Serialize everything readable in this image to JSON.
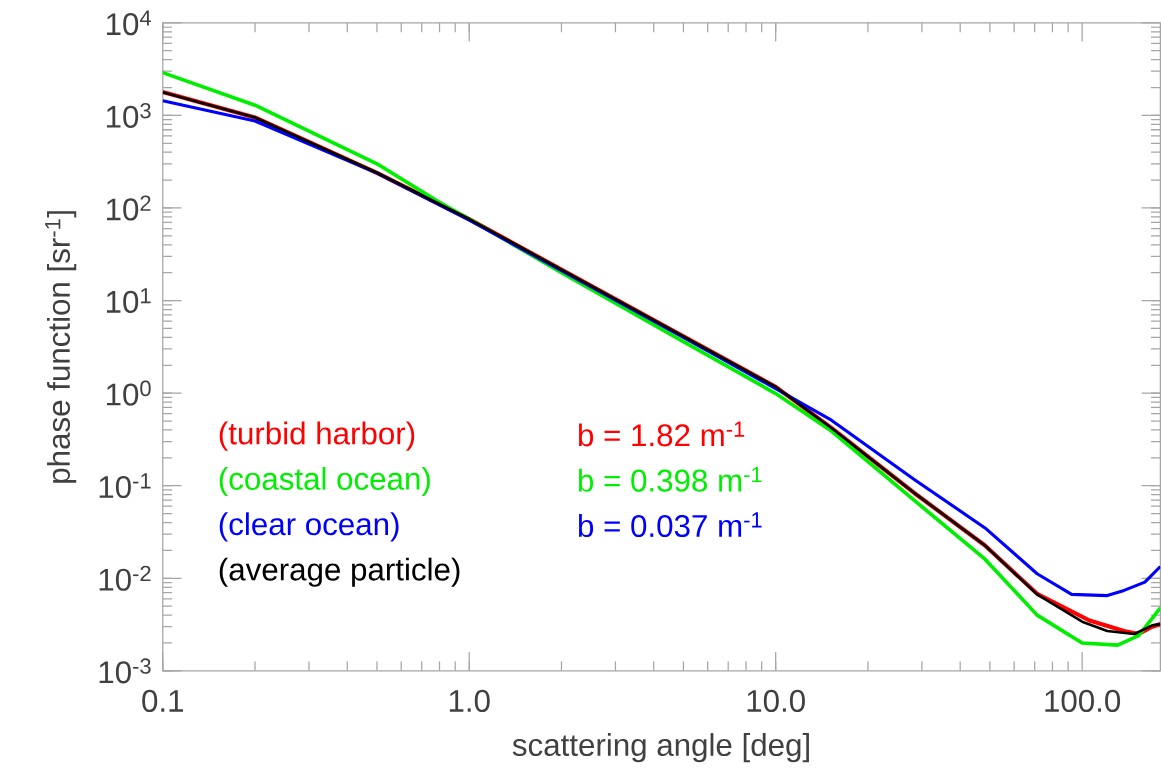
{
  "chart_data": {
    "type": "line",
    "xlabel": "scattering angle [deg]",
    "ylabel": "phase function [sr$^{-1}$]",
    "log": "xy",
    "xlim": [
      0.1,
      180
    ],
    "ylim": [
      0.001,
      10000
    ],
    "xticks": [
      0.1,
      {
        "value": 1,
        "label": "1.0"
      },
      {
        "value": 10,
        "label": "10.0"
      },
      {
        "value": 100,
        "label": "100.0"
      }
    ],
    "yticks": [
      {
        "value": 0.001,
        "label": "10$^{-3}$"
      },
      {
        "value": 0.01,
        "label": "10$^{-2}$"
      },
      {
        "value": 0.1,
        "label": "10$^{-1}$"
      },
      {
        "value": 1,
        "label": "10$^{0}$"
      },
      {
        "value": 10,
        "label": "10$^{1}$"
      },
      {
        "value": 100,
        "label": "10$^{2}$"
      },
      {
        "value": 1000,
        "label": "10$^{3}$"
      },
      {
        "value": 10000,
        "label": "10$^{4}$"
      }
    ],
    "grid": false,
    "legend": "bottom left",
    "marker": "none",
    "line_style": "solid",
    "series": [
      {
        "name": "(turbid harbor)",
        "color": "#ff0000",
        "x": [
          0.1,
          0.2,
          0.5,
          1,
          2,
          5,
          10,
          15.2,
          28.4,
          48.2,
          71.3,
          105.7,
          137,
          152.8,
          169.3,
          180
        ],
        "values": [
          1790,
          950,
          240,
          76,
          21.6,
          4.1,
          1.17,
          0.42,
          0.083,
          0.0226,
          0.0068,
          0.0035,
          0.0027,
          0.0025,
          0.003,
          0.0032
        ]
      },
      {
        "name": "(coastal ocean)",
        "color": "#00ee00",
        "x": [
          0.1,
          0.2,
          0.5,
          0.79,
          1,
          2,
          5,
          10,
          15.2,
          28.4,
          48.2,
          71.3,
          100,
          130.6,
          152.8,
          169.3,
          180
        ],
        "values": [
          2900,
          1290,
          300,
          118,
          76,
          20,
          3.6,
          0.99,
          0.39,
          0.069,
          0.0161,
          0.004,
          0.002,
          0.0019,
          0.0024,
          0.0037,
          0.0048
        ]
      },
      {
        "name": "(clear ocean)",
        "color": "#0000ff",
        "x": [
          0.1,
          0.2,
          0.5,
          1,
          2,
          5,
          10,
          15.2,
          28.4,
          48.2,
          71.3,
          92.4,
          120.8,
          137,
          160.2,
          180
        ],
        "values": [
          1440,
          870,
          238,
          74,
          21,
          4.0,
          1.12,
          0.51,
          0.116,
          0.035,
          0.0112,
          0.0067,
          0.0065,
          0.0074,
          0.0091,
          0.0134
        ]
      },
      {
        "name": "(average particle)",
        "color": "#000000",
        "x": [
          0.1,
          0.2,
          0.5,
          1,
          2,
          5,
          10,
          15.2,
          28.4,
          48.2,
          71.3,
          100,
          120.8,
          148,
          169.3,
          180
        ],
        "values": [
          1780,
          950,
          240,
          76,
          21.6,
          4.1,
          1.17,
          0.42,
          0.083,
          0.0226,
          0.0067,
          0.0034,
          0.0027,
          0.0025,
          0.0031,
          0.0032
        ]
      }
    ],
    "annotations": [
      "b = 1.82 m$^{-1}$",
      "b = 0.398 m$^{-1}$",
      "b = 0.037 m$^{-1}$"
    ]
  }
}
